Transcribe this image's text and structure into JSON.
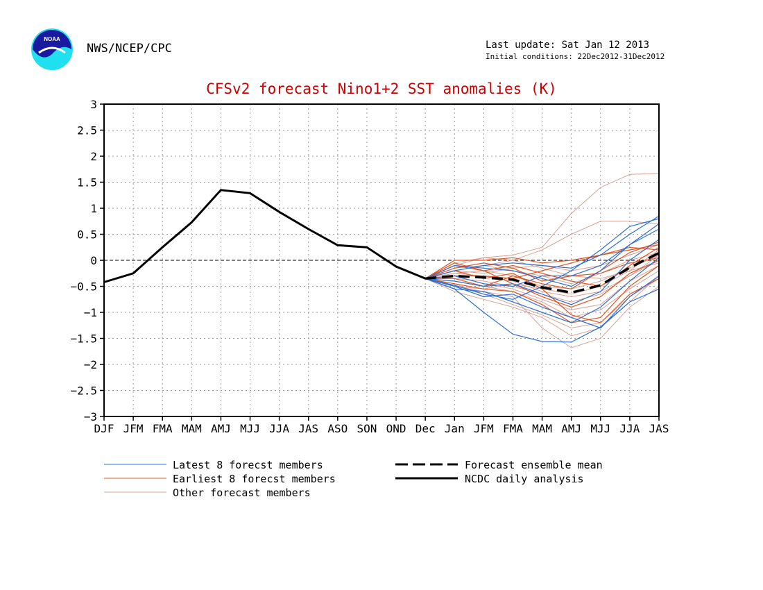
{
  "header": {
    "agency": "NWS/NCEP/CPC",
    "logo_text": "NOAA",
    "last_update": "Last update: Sat Jan 12 2013",
    "initial_conditions": "Initial conditions: 22Dec2012-31Dec2012"
  },
  "legend": {
    "latest": "Latest 8 forecst members",
    "earliest": "Earliest 8 forecst members",
    "other": "Other forecast members",
    "mean": "Forecast ensemble mean",
    "analysis": "NCDC daily analysis"
  },
  "colors": {
    "latest": "#2a6fd6",
    "earliest": "#e0541e",
    "other": "#d9a096",
    "title": "#cc0000"
  },
  "chart_data": {
    "type": "line",
    "title": "CFSv2 forecast Nino1+2 SST anomalies (K)",
    "categories": [
      "DJF",
      "JFM",
      "FMA",
      "MAM",
      "AMJ",
      "MJJ",
      "JJA",
      "JAS",
      "ASO",
      "SON",
      "OND",
      "Dec",
      "Jan",
      "JFM",
      "FMA",
      "MAM",
      "AMJ",
      "MJJ",
      "JJA",
      "JAS"
    ],
    "ylim": [
      -3,
      3
    ],
    "yticks": [
      3,
      2.5,
      2,
      1.5,
      1,
      0.5,
      0,
      -0.5,
      -1,
      -1.5,
      -2,
      -2.5,
      -3
    ],
    "ytick_labels": [
      "3",
      "2.5",
      "2",
      "1.5",
      "1",
      "0.5",
      "0",
      "−0.5",
      "−1",
      "−1.5",
      "−2",
      "−2.5",
      "−3"
    ],
    "grid": true,
    "analysis": {
      "name": "NCDC daily analysis",
      "x_start": 0,
      "values": [
        -0.42,
        -0.25,
        0.25,
        0.73,
        1.35,
        1.29,
        0.93,
        0.6,
        0.29,
        0.25,
        -0.12,
        -0.35
      ]
    },
    "ensemble_mean": {
      "name": "Forecast ensemble mean",
      "x_start": 11,
      "values": [
        -0.35,
        -0.3,
        -0.33,
        -0.37,
        -0.52,
        -0.62,
        -0.48,
        -0.14,
        0.14
      ]
    },
    "members": {
      "x_start": 11,
      "latest": [
        [
          -0.35,
          -0.55,
          -1.0,
          -1.42,
          -1.56,
          -1.57,
          -1.28,
          -0.8,
          -0.55
        ],
        [
          -0.35,
          -0.48,
          -0.65,
          -0.75,
          -0.5,
          -0.2,
          0.2,
          0.65,
          0.8
        ],
        [
          -0.35,
          -0.2,
          -0.1,
          -0.05,
          -0.1,
          -0.15,
          0.1,
          0.5,
          0.85
        ],
        [
          -0.35,
          -0.5,
          -0.7,
          -0.65,
          -0.9,
          -1.1,
          -1.3,
          -0.7,
          -0.3
        ],
        [
          -0.35,
          -0.3,
          -0.45,
          -0.5,
          -0.3,
          -0.3,
          -0.1,
          0.3,
          0.6
        ],
        [
          -0.35,
          -0.1,
          -0.15,
          -0.2,
          -0.35,
          -0.5,
          -0.2,
          0.3,
          0.7
        ],
        [
          -0.35,
          -0.4,
          -0.5,
          -0.45,
          -0.65,
          -0.85,
          -0.6,
          0.0,
          0.4
        ],
        [
          -0.35,
          -0.55,
          -0.6,
          -0.8,
          -1.0,
          -1.2,
          -0.9,
          -0.4,
          0.05
        ]
      ],
      "earliest": [
        [
          -0.35,
          0.0,
          0.0,
          0.05,
          -0.05,
          0.0,
          0.1,
          0.2,
          0.3
        ],
        [
          -0.35,
          -0.1,
          -0.2,
          -0.1,
          -0.25,
          -0.4,
          -0.5,
          -0.1,
          0.25
        ],
        [
          -0.35,
          -0.2,
          -0.35,
          -0.25,
          -0.55,
          -1.05,
          -1.2,
          -0.65,
          -0.35
        ],
        [
          -0.35,
          -0.3,
          -0.3,
          -0.35,
          -0.2,
          -0.05,
          0.1,
          0.25,
          0.2
        ],
        [
          -0.35,
          -0.45,
          -0.55,
          -0.6,
          -0.85,
          -1.2,
          -1.1,
          -0.5,
          -0.1
        ],
        [
          -0.35,
          -0.15,
          -0.05,
          -0.15,
          -0.4,
          -0.3,
          -0.25,
          -0.05,
          0.05
        ],
        [
          -0.35,
          -0.35,
          -0.5,
          -0.3,
          -0.45,
          -0.55,
          -0.2,
          0.15,
          0.35
        ],
        [
          -0.35,
          -0.05,
          -0.2,
          -0.45,
          -0.7,
          -0.9,
          -0.7,
          -0.25,
          0.0
        ]
      ],
      "other": [
        [
          -0.35,
          -0.1,
          0.05,
          0.1,
          0.25,
          0.9,
          1.4,
          1.65,
          1.67
        ],
        [
          -0.35,
          -0.2,
          -0.1,
          0.0,
          0.2,
          0.5,
          0.75,
          0.75,
          0.7
        ],
        [
          -0.35,
          -0.6,
          -0.75,
          -0.9,
          -1.1,
          -1.45,
          -1.3,
          -0.8,
          -0.3
        ],
        [
          -0.35,
          -0.5,
          -0.6,
          -0.7,
          -1.3,
          -1.68,
          -1.5,
          -0.9,
          -0.5
        ],
        [
          -0.35,
          -0.4,
          -0.5,
          -0.6,
          -0.8,
          -1.1,
          -0.95,
          -0.55,
          -0.2
        ],
        [
          -0.35,
          -0.25,
          -0.3,
          -0.4,
          -0.6,
          -0.7,
          -0.6,
          -0.3,
          0.0
        ],
        [
          -0.35,
          -0.15,
          -0.1,
          -0.2,
          -0.3,
          -0.45,
          -0.25,
          0.0,
          0.15
        ],
        [
          -0.35,
          -0.3,
          -0.45,
          -0.55,
          -0.75,
          -0.95,
          -0.85,
          -0.4,
          -0.1
        ],
        [
          -0.35,
          -0.45,
          -0.65,
          -0.85,
          -1.05,
          -1.3,
          -1.2,
          -0.7,
          -0.35
        ],
        [
          -0.35,
          -0.2,
          -0.25,
          -0.15,
          -0.1,
          -0.2,
          -0.1,
          0.1,
          0.3
        ],
        [
          -0.35,
          -0.05,
          0.05,
          0.0,
          -0.15,
          -0.3,
          -0.35,
          -0.2,
          -0.05
        ],
        [
          -0.35,
          -0.35,
          -0.4,
          -0.5,
          -0.65,
          -0.8,
          -0.65,
          -0.3,
          0.1
        ],
        [
          -0.35,
          -0.5,
          -0.55,
          -0.45,
          -0.55,
          -0.65,
          -0.5,
          -0.2,
          0.2
        ],
        [
          -0.35,
          -0.25,
          -0.2,
          -0.3,
          -0.5,
          -0.55,
          -0.4,
          -0.15,
          0.1
        ]
      ]
    }
  }
}
